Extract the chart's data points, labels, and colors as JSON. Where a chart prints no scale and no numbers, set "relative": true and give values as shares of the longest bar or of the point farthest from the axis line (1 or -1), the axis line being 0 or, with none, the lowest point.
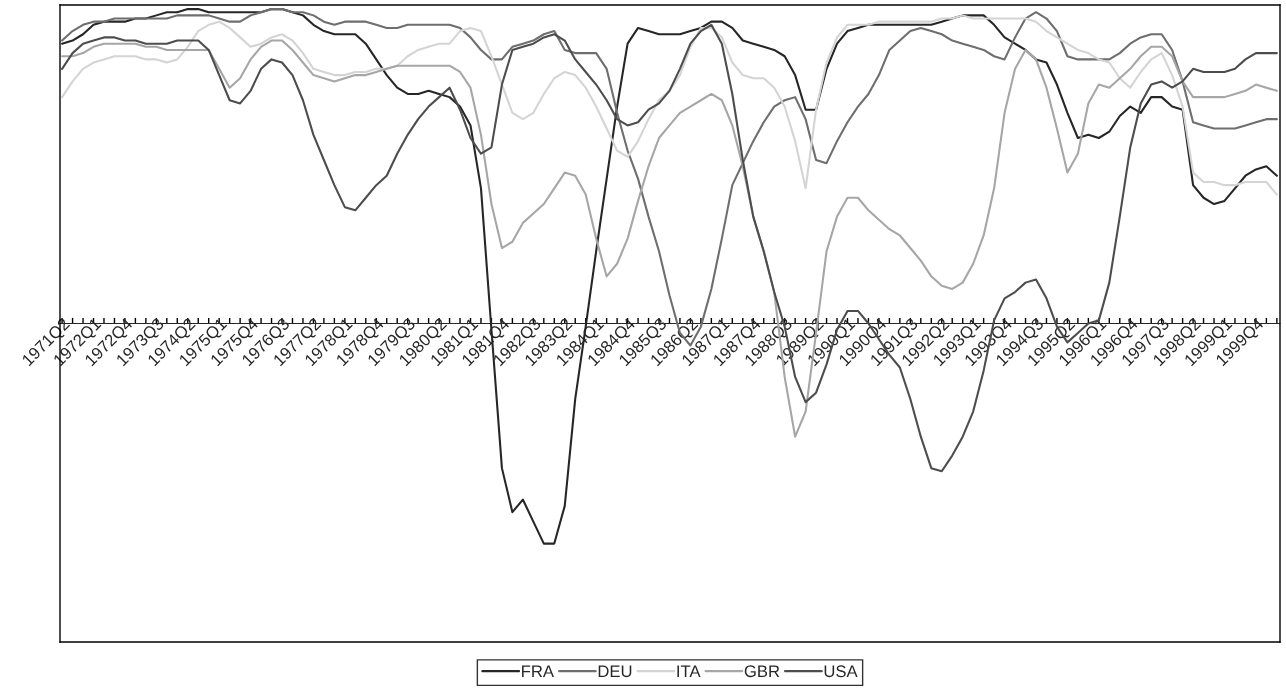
{
  "chart_data": {
    "type": "line",
    "relative": true,
    "legend": "bottom",
    "categories": [
      "1971Q2",
      null,
      null,
      "1972Q1",
      null,
      null,
      "1972Q4",
      null,
      null,
      "1973Q3",
      null,
      null,
      "1974Q2",
      null,
      null,
      "1975Q1",
      null,
      null,
      "1975Q4",
      null,
      null,
      "1976Q3",
      null,
      null,
      "1977Q2",
      null,
      null,
      "1978Q1",
      null,
      null,
      "1978Q4",
      null,
      null,
      "1979Q3",
      null,
      null,
      "1980Q2",
      null,
      null,
      "1981Q1",
      null,
      null,
      "1981Q4",
      null,
      null,
      "1982Q3",
      null,
      null,
      "1983Q2",
      null,
      null,
      "1984Q1",
      null,
      null,
      "1984Q4",
      null,
      null,
      "1985Q3",
      null,
      null,
      "1986Q2",
      null,
      null,
      "1987Q1",
      null,
      null,
      "1987Q4",
      null,
      null,
      "1988Q3",
      null,
      null,
      "1989Q2",
      null,
      null,
      "1990Q1",
      null,
      null,
      "1990Q4",
      null,
      null,
      "1991Q3",
      null,
      null,
      "1992Q2",
      null,
      null,
      "1993Q1",
      null,
      null,
      "1993Q4",
      null,
      null,
      "1994Q3",
      null,
      null,
      "1995Q2",
      null,
      null,
      "1996Q1",
      null,
      null,
      "1996Q4",
      null,
      null,
      "1997Q3",
      null,
      null,
      "1998Q2",
      null,
      null,
      "1999Q1",
      null,
      null,
      "1999Q4",
      null,
      null
    ],
    "series": [
      {
        "name": "FRA",
        "color": "#262626",
        "values": [
          0.89,
          0.9,
          0.92,
          0.95,
          0.96,
          0.96,
          0.96,
          0.97,
          0.97,
          0.98,
          0.99,
          0.99,
          1.0,
          1.0,
          0.99,
          0.99,
          0.99,
          0.99,
          0.99,
          0.99,
          1.0,
          1.0,
          0.99,
          0.98,
          0.95,
          0.93,
          0.92,
          0.92,
          0.92,
          0.89,
          0.84,
          0.79,
          0.75,
          0.73,
          0.73,
          0.74,
          0.73,
          0.72,
          0.69,
          0.63,
          0.43,
          -0.02,
          -0.46,
          -0.6,
          -0.56,
          -0.63,
          -0.7,
          -0.7,
          -0.58,
          -0.24,
          -0.01,
          0.23,
          0.46,
          0.69,
          0.89,
          0.94,
          0.93,
          0.92,
          0.92,
          0.92,
          0.93,
          0.94,
          0.96,
          0.96,
          0.94,
          0.9,
          0.89,
          0.88,
          0.87,
          0.85,
          0.79,
          0.68,
          0.68,
          0.81,
          0.89,
          0.93,
          0.94,
          0.95,
          0.95,
          0.95,
          0.95,
          0.95,
          0.95,
          0.95,
          0.96,
          0.97,
          0.98,
          0.98,
          0.98,
          0.95,
          0.91,
          0.89,
          0.87,
          0.84,
          0.83,
          0.76,
          0.67,
          0.59,
          0.6,
          0.59,
          0.61,
          0.66,
          0.69,
          0.67,
          0.72,
          0.72,
          0.69,
          0.68,
          0.44,
          0.4,
          0.38,
          0.39,
          0.43,
          0.47,
          0.49,
          0.5,
          0.47
        ]
      },
      {
        "name": "DEU",
        "color": "#6e6e6e",
        "values": [
          0.9,
          0.93,
          0.95,
          0.96,
          0.96,
          0.97,
          0.97,
          0.97,
          0.97,
          0.97,
          0.97,
          0.98,
          0.98,
          0.98,
          0.98,
          0.97,
          0.96,
          0.96,
          0.98,
          0.99,
          1.0,
          1.0,
          0.99,
          0.99,
          0.98,
          0.96,
          0.95,
          0.96,
          0.96,
          0.96,
          0.95,
          0.94,
          0.94,
          0.95,
          0.95,
          0.95,
          0.95,
          0.95,
          0.94,
          0.91,
          0.87,
          0.84,
          0.84,
          0.88,
          0.89,
          0.9,
          0.92,
          0.93,
          0.87,
          0.86,
          0.86,
          0.86,
          0.81,
          0.67,
          0.55,
          0.46,
          0.34,
          0.23,
          0.09,
          -0.03,
          -0.07,
          -0.01,
          0.11,
          0.27,
          0.44,
          0.51,
          0.58,
          0.64,
          0.69,
          0.71,
          0.72,
          0.65,
          0.52,
          0.51,
          0.58,
          0.64,
          0.69,
          0.73,
          0.79,
          0.87,
          0.9,
          0.93,
          0.94,
          0.93,
          0.92,
          0.9,
          0.89,
          0.88,
          0.87,
          0.85,
          0.84,
          0.91,
          0.97,
          0.99,
          0.97,
          0.93,
          0.85,
          0.84,
          0.84,
          0.84,
          0.84,
          0.86,
          0.89,
          0.91,
          0.92,
          0.92,
          0.87,
          0.77,
          0.64,
          0.63,
          0.62,
          0.62,
          0.62,
          0.63,
          0.64,
          0.65,
          0.65
        ]
      },
      {
        "name": "ITA",
        "color": "#d4d4d4",
        "values": [
          0.72,
          0.77,
          0.81,
          0.83,
          0.84,
          0.85,
          0.85,
          0.85,
          0.84,
          0.84,
          0.83,
          0.84,
          0.88,
          0.93,
          0.95,
          0.96,
          0.94,
          0.91,
          0.88,
          0.89,
          0.91,
          0.92,
          0.9,
          0.86,
          0.81,
          0.8,
          0.79,
          0.79,
          0.8,
          0.8,
          0.81,
          0.81,
          0.82,
          0.85,
          0.87,
          0.88,
          0.89,
          0.89,
          0.93,
          0.94,
          0.93,
          0.85,
          0.76,
          0.67,
          0.65,
          0.67,
          0.73,
          0.78,
          0.8,
          0.79,
          0.75,
          0.69,
          0.62,
          0.55,
          0.53,
          0.58,
          0.65,
          0.71,
          0.74,
          0.79,
          0.88,
          0.94,
          0.94,
          0.91,
          0.83,
          0.79,
          0.78,
          0.78,
          0.75,
          0.69,
          0.58,
          0.43,
          0.68,
          0.83,
          0.91,
          0.95,
          0.95,
          0.95,
          0.96,
          0.96,
          0.96,
          0.96,
          0.96,
          0.96,
          0.97,
          0.97,
          0.98,
          0.97,
          0.97,
          0.97,
          0.97,
          0.97,
          0.97,
          0.96,
          0.93,
          0.91,
          0.89,
          0.87,
          0.86,
          0.84,
          0.83,
          0.78,
          0.75,
          0.8,
          0.84,
          0.86,
          0.79,
          0.69,
          0.48,
          0.45,
          0.45,
          0.44,
          0.44,
          0.45,
          0.45,
          0.45,
          0.41
        ]
      },
      {
        "name": "GBR",
        "color": "#a6a6a6",
        "values": [
          0.85,
          0.85,
          0.86,
          0.88,
          0.89,
          0.89,
          0.89,
          0.89,
          0.88,
          0.88,
          0.87,
          0.87,
          0.87,
          0.87,
          0.87,
          0.81,
          0.75,
          0.78,
          0.84,
          0.88,
          0.9,
          0.9,
          0.87,
          0.83,
          0.79,
          0.78,
          0.77,
          0.78,
          0.79,
          0.79,
          0.8,
          0.81,
          0.82,
          0.82,
          0.82,
          0.82,
          0.82,
          0.82,
          0.8,
          0.75,
          0.6,
          0.38,
          0.24,
          0.26,
          0.32,
          0.35,
          0.38,
          0.43,
          0.48,
          0.47,
          0.41,
          0.27,
          0.15,
          0.19,
          0.27,
          0.39,
          0.5,
          0.59,
          0.63,
          0.67,
          0.69,
          0.71,
          0.73,
          0.71,
          0.63,
          0.5,
          0.34,
          0.23,
          0.1,
          -0.17,
          -0.36,
          -0.28,
          -0.03,
          0.23,
          0.34,
          0.4,
          0.4,
          0.36,
          0.33,
          0.3,
          0.28,
          0.24,
          0.2,
          0.15,
          0.12,
          0.11,
          0.13,
          0.19,
          0.28,
          0.43,
          0.67,
          0.81,
          0.87,
          0.84,
          0.75,
          0.62,
          0.48,
          0.54,
          0.7,
          0.76,
          0.75,
          0.78,
          0.81,
          0.85,
          0.88,
          0.88,
          0.85,
          0.77,
          0.72,
          0.72,
          0.72,
          0.72,
          0.73,
          0.74,
          0.76,
          0.75,
          0.74
        ]
      },
      {
        "name": "USA",
        "color": "#4d4d4d",
        "values": [
          0.81,
          0.86,
          0.89,
          0.9,
          0.91,
          0.91,
          0.9,
          0.9,
          0.89,
          0.89,
          0.89,
          0.9,
          0.9,
          0.9,
          0.87,
          0.79,
          0.71,
          0.7,
          0.74,
          0.81,
          0.84,
          0.83,
          0.79,
          0.71,
          0.6,
          0.52,
          0.44,
          0.37,
          0.36,
          0.4,
          0.44,
          0.47,
          0.54,
          0.6,
          0.65,
          0.69,
          0.72,
          0.75,
          0.68,
          0.59,
          0.54,
          0.56,
          0.76,
          0.87,
          0.88,
          0.89,
          0.91,
          0.92,
          0.9,
          0.84,
          0.8,
          0.76,
          0.71,
          0.65,
          0.63,
          0.64,
          0.68,
          0.7,
          0.74,
          0.81,
          0.89,
          0.93,
          0.95,
          0.89,
          0.73,
          0.52,
          0.34,
          0.23,
          0.1,
          -0.01,
          -0.17,
          -0.25,
          -0.22,
          -0.13,
          -0.02,
          0.04,
          0.04,
          0.0,
          -0.05,
          -0.1,
          -0.14,
          -0.24,
          -0.36,
          -0.46,
          -0.47,
          -0.42,
          -0.36,
          -0.28,
          -0.15,
          0.01,
          0.08,
          0.1,
          0.13,
          0.14,
          0.08,
          -0.01,
          -0.06,
          -0.03,
          0.0,
          0.01,
          0.13,
          0.34,
          0.56,
          0.7,
          0.76,
          0.77,
          0.75,
          0.77,
          0.81,
          0.8,
          0.8,
          0.8,
          0.81,
          0.84,
          0.86,
          0.86,
          0.86
        ]
      }
    ]
  }
}
